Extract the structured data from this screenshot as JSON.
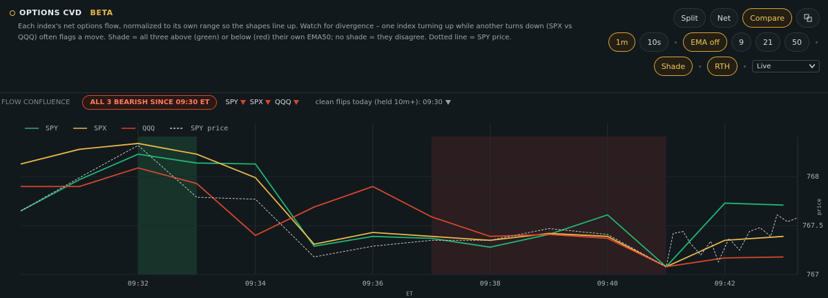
{
  "header": {
    "title": "OPTIONS CVD",
    "badge": "BETA",
    "description": "Each index's net options flow, normalized to its own range so the shapes line up. Watch for divergence – one index turning up while another turns down (SPX vs QQQ) often flags a move. Shade = all three above (green) or below (red) their own EMA50; no shade = they disagree. Dotted line = SPY price."
  },
  "controls": {
    "rows": [
      [
        {
          "label": "Split",
          "active": false
        },
        {
          "label": "Net",
          "active": false
        },
        {
          "label": "Compare",
          "active": true
        }
      ],
      [
        {
          "label": "1m",
          "active": true
        },
        {
          "label": "10s",
          "active": false
        },
        {
          "label": "EMA off",
          "active": true
        },
        {
          "label": "9",
          "active": false
        },
        {
          "label": "21",
          "active": false
        },
        {
          "label": "50",
          "active": false
        }
      ],
      [
        {
          "label": "Shade",
          "active": true
        },
        {
          "label": "RTH",
          "active": true
        }
      ]
    ],
    "source": "Live"
  },
  "confluence": {
    "label": "FLOW CONFLUENCE",
    "status": "ALL 3 BEARISH SINCE 09:30 ET",
    "indices": [
      "SPY",
      "SPX",
      "QQQ"
    ],
    "flips": "clean flips today (held 10m+): 09:30"
  },
  "chart_data": {
    "type": "line",
    "xlabel": "ET",
    "ylabel": "price",
    "xlim": [
      30,
      43.24
    ],
    "xticks": [
      {
        "value": 32,
        "label": "09:32"
      },
      {
        "value": 34,
        "label": "09:34"
      },
      {
        "value": 36,
        "label": "09:36"
      },
      {
        "value": 38,
        "label": "09:38"
      },
      {
        "value": 40,
        "label": "09:40"
      },
      {
        "value": 42,
        "label": "09:42"
      }
    ],
    "ylim": [
      767,
      768.41
    ],
    "yticks": [
      767,
      767.5,
      768
    ],
    "grid": true,
    "shading": [
      {
        "from": 32,
        "to": 33,
        "color": "rgba(40,150,95,0.22)"
      },
      {
        "from": 37,
        "to": 41,
        "color": "rgba(120,45,45,0.25)"
      }
    ],
    "series": [
      {
        "name": "SPY",
        "color": "#22b573",
        "dash": false,
        "x": [
          30,
          31,
          32,
          33,
          34,
          35,
          36,
          37,
          38,
          39,
          40,
          41,
          42,
          43
        ],
        "values": [
          767.65,
          767.97,
          768.23,
          768.14,
          768.13,
          767.29,
          767.39,
          767.37,
          767.28,
          767.41,
          767.61,
          767.08,
          767.73,
          767.71
        ]
      },
      {
        "name": "SPX",
        "color": "#e9b949",
        "dash": false,
        "x": [
          30,
          31,
          32,
          33,
          34,
          35,
          36,
          37,
          38,
          39,
          40,
          41,
          42,
          43
        ],
        "values": [
          768.13,
          768.28,
          768.34,
          768.23,
          767.99,
          767.31,
          767.43,
          767.39,
          767.35,
          767.42,
          767.39,
          767.08,
          767.35,
          767.39
        ]
      },
      {
        "name": "QQQ",
        "color": "#d6472b",
        "dash": false,
        "x": [
          30,
          31,
          32,
          33,
          34,
          35,
          36,
          37,
          38,
          39,
          40,
          41,
          42,
          43
        ],
        "values": [
          767.9,
          767.9,
          768.09,
          767.93,
          767.4,
          767.69,
          767.9,
          767.59,
          767.39,
          767.41,
          767.37,
          767.08,
          767.17,
          767.18
        ]
      },
      {
        "name": "SPY price",
        "color": "#c8c8c8",
        "dash": true,
        "x": [
          30,
          31,
          32,
          33,
          34,
          35,
          36,
          37,
          38,
          39,
          40,
          41,
          41.12,
          41.29,
          41.41,
          41.59,
          41.76,
          41.89,
          42.07,
          42.25,
          42.42,
          42.6,
          42.78,
          42.89,
          43.07,
          43.24
        ],
        "values": [
          767.65,
          767.99,
          768.32,
          767.79,
          767.77,
          767.18,
          767.29,
          767.35,
          767.35,
          767.47,
          767.41,
          767.08,
          767.42,
          767.44,
          767.32,
          767.2,
          767.34,
          767.13,
          767.37,
          767.25,
          767.44,
          767.48,
          767.39,
          767.61,
          767.54,
          767.58
        ]
      }
    ]
  }
}
